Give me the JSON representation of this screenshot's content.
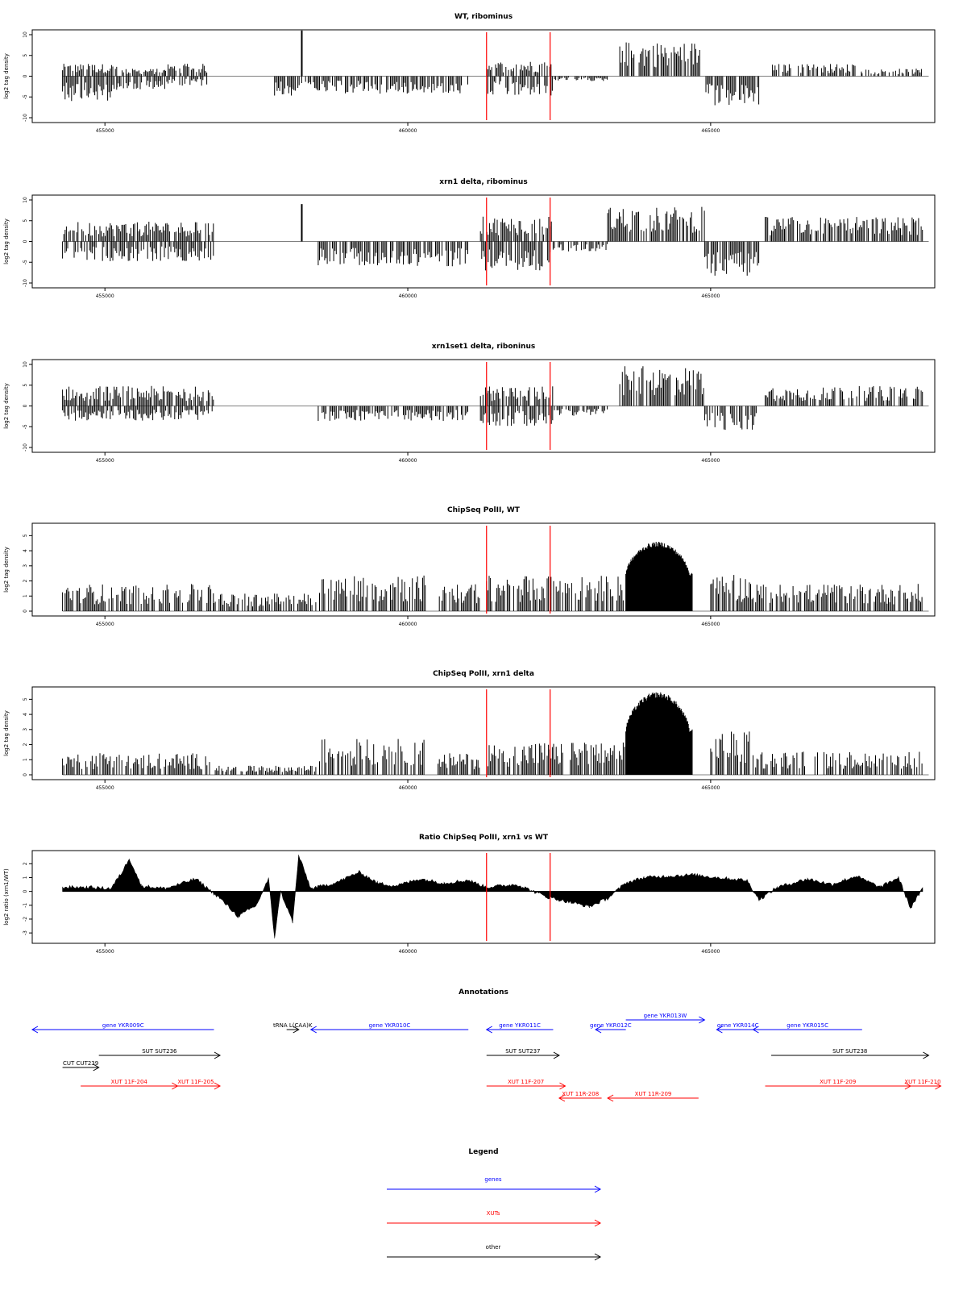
{
  "colors": {
    "gene": "#0000ff",
    "xut": "#ff0000",
    "other": "#000000",
    "marker": "#ff0000",
    "bars": "#000000",
    "baseline": "#808080"
  },
  "chart_data": [
    {
      "type": "bar",
      "title": "WT, ribominus",
      "ylabel": "log2 tag density",
      "xlim": [
        453800,
        468700
      ],
      "ylim": [
        -10,
        10
      ],
      "yticks": [
        10,
        5,
        0,
        -5,
        -10
      ],
      "xticks": [
        455000,
        460000,
        465000
      ],
      "xtick_labels": [
        "455000",
        "460000",
        "465000"
      ],
      "markers": [
        461300,
        462350
      ],
      "segments": [
        {
          "from": 454300,
          "to": 455200,
          "level": 2.5
        },
        {
          "from": 454300,
          "to": 455200,
          "level": -5
        },
        {
          "from": 455200,
          "to": 456000,
          "level": 1.5
        },
        {
          "from": 455200,
          "to": 456000,
          "level": -3
        },
        {
          "from": 456000,
          "to": 456700,
          "level": 2.5
        },
        {
          "from": 456000,
          "to": 456700,
          "level": -2
        },
        {
          "from": 457800,
          "to": 458100,
          "level": -4
        },
        {
          "from": 458100,
          "to": 458500,
          "level": -3
        },
        {
          "from": 458500,
          "to": 461000,
          "level": -3.5
        },
        {
          "from": 461300,
          "to": 462400,
          "level": 3
        },
        {
          "from": 461300,
          "to": 462400,
          "level": -4
        },
        {
          "from": 462400,
          "to": 463300,
          "level": -1
        },
        {
          "from": 463500,
          "to": 464900,
          "level": 7
        },
        {
          "from": 464900,
          "to": 465800,
          "level": -6
        },
        {
          "from": 466000,
          "to": 467500,
          "level": 2.5
        },
        {
          "from": 467500,
          "to": 468500,
          "level": 1.5
        }
      ],
      "spikes": [
        {
          "x": 458250,
          "value": 11
        }
      ]
    },
    {
      "type": "bar",
      "title": "xrn1 delta, ribominus",
      "ylabel": "log2 tag density",
      "xlim": [
        453800,
        468700
      ],
      "ylim": [
        -10,
        10
      ],
      "yticks": [
        10,
        5,
        0,
        -5,
        -10
      ],
      "xticks": [
        455000,
        460000,
        465000
      ],
      "xtick_labels": [
        "455000",
        "460000",
        "465000"
      ],
      "markers": [
        461300,
        462350
      ],
      "segments": [
        {
          "from": 454300,
          "to": 456800,
          "level": 4
        },
        {
          "from": 454300,
          "to": 456800,
          "level": -4
        },
        {
          "from": 458500,
          "to": 461000,
          "level": -5
        },
        {
          "from": 461200,
          "to": 462400,
          "level": 5
        },
        {
          "from": 461200,
          "to": 462400,
          "level": -6
        },
        {
          "from": 462400,
          "to": 463300,
          "level": -2
        },
        {
          "from": 463300,
          "to": 464900,
          "level": 7
        },
        {
          "from": 464900,
          "to": 465800,
          "level": -7
        },
        {
          "from": 465900,
          "to": 468500,
          "level": 5
        }
      ],
      "spikes": [
        {
          "x": 458250,
          "value": 9
        }
      ]
    },
    {
      "type": "bar",
      "title": "xrn1set1 delta, riboninus",
      "ylabel": "log2 tag density",
      "xlim": [
        453800,
        468700
      ],
      "ylim": [
        -10,
        10
      ],
      "yticks": [
        10,
        5,
        0,
        -5,
        -10
      ],
      "xticks": [
        455000,
        460000,
        465000
      ],
      "xtick_labels": [
        "455000",
        "460000",
        "465000"
      ],
      "markers": [
        461300,
        462350
      ],
      "segments": [
        {
          "from": 454300,
          "to": 456800,
          "level": 4
        },
        {
          "from": 454300,
          "to": 456800,
          "level": -3
        },
        {
          "from": 458500,
          "to": 461000,
          "level": -3
        },
        {
          "from": 461200,
          "to": 462400,
          "level": 4
        },
        {
          "from": 461200,
          "to": 462400,
          "level": -4
        },
        {
          "from": 462400,
          "to": 463300,
          "level": -2
        },
        {
          "from": 463500,
          "to": 464900,
          "level": 8
        },
        {
          "from": 464900,
          "to": 465800,
          "level": -5
        },
        {
          "from": 465900,
          "to": 468500,
          "level": 4
        }
      ],
      "spikes": []
    },
    {
      "type": "bar",
      "title": "ChipSeq PolII, WT",
      "ylabel": "log2 tag density",
      "xlim": [
        453800,
        468700
      ],
      "ylim": [
        0,
        5.5
      ],
      "yticks": [
        0,
        1,
        2,
        3,
        4,
        5
      ],
      "xticks": [
        455000,
        460000,
        465000
      ],
      "xtick_labels": [
        "455000",
        "460000",
        "465000"
      ],
      "markers": [
        461300,
        462350
      ],
      "segments": [
        {
          "from": 454300,
          "to": 456800,
          "level": 1.5
        },
        {
          "from": 456800,
          "to": 458500,
          "level": 1
        },
        {
          "from": 458500,
          "to": 460300,
          "level": 2
        },
        {
          "from": 460500,
          "to": 461200,
          "level": 1.5
        },
        {
          "from": 461300,
          "to": 463600,
          "level": 2
        },
        {
          "from": 465000,
          "to": 465700,
          "level": 2
        },
        {
          "from": 465700,
          "to": 468500,
          "level": 1.5
        }
      ],
      "plateau": {
        "from": 463600,
        "to": 464700,
        "max": 4.6
      },
      "spikes": []
    },
    {
      "type": "bar",
      "title": "ChipSeq PolII, xrn1 delta",
      "ylabel": "log2 tag density",
      "xlim": [
        453800,
        468700
      ],
      "ylim": [
        0,
        5.5
      ],
      "yticks": [
        0,
        1,
        2,
        3,
        4,
        5
      ],
      "xticks": [
        455000,
        460000,
        465000
      ],
      "xtick_labels": [
        "455000",
        "460000",
        "465000"
      ],
      "markers": [
        461300,
        462350
      ],
      "segments": [
        {
          "from": 454300,
          "to": 456800,
          "level": 1.2
        },
        {
          "from": 456800,
          "to": 458500,
          "level": 0.5
        },
        {
          "from": 458500,
          "to": 460300,
          "level": 2
        },
        {
          "from": 460500,
          "to": 461200,
          "level": 1.2
        },
        {
          "from": 461300,
          "to": 463600,
          "level": 1.8
        },
        {
          "from": 465000,
          "to": 465700,
          "level": 2.4
        },
        {
          "from": 465700,
          "to": 468500,
          "level": 1.3
        }
      ],
      "plateau": {
        "from": 463600,
        "to": 464700,
        "max": 5.5
      },
      "spikes": []
    },
    {
      "type": "area",
      "title": "Ratio ChipSeq PolII, xrn1 vs WT",
      "ylabel": "log2 ratio (xrn1/WT)",
      "xlim": [
        453800,
        468700
      ],
      "ylim": [
        -3.4,
        2.6
      ],
      "yticks": [
        2,
        1,
        0,
        -1,
        -2,
        -3
      ],
      "xticks": [
        455000,
        460000,
        465000
      ],
      "xtick_labels": [
        "455000",
        "460000",
        "465000"
      ],
      "markers": [
        461300,
        462350
      ],
      "x": [
        454300,
        454700,
        455100,
        455300,
        455400,
        455600,
        456000,
        456500,
        456900,
        457200,
        457500,
        457700,
        457800,
        457900,
        458100,
        458200,
        458400,
        458800,
        459200,
        459500,
        459800,
        460200,
        460600,
        461000,
        461300,
        461800,
        462300,
        462700,
        463000,
        463300,
        463600,
        463900,
        464300,
        464700,
        465100,
        465600,
        465800,
        466100,
        466600,
        467000,
        467400,
        467800,
        468100,
        468300,
        468500
      ],
      "values": [
        0.3,
        0.3,
        0.2,
        1.5,
        2.4,
        0.4,
        0.2,
        0.9,
        -0.5,
        -1.8,
        -1.0,
        0.9,
        -3.3,
        0.0,
        -2.2,
        2.6,
        0.2,
        0.6,
        1.4,
        0.6,
        0.4,
        0.9,
        0.6,
        0.8,
        0.3,
        0.5,
        -0.4,
        -0.8,
        -1.1,
        -0.5,
        0.6,
        1.0,
        1.1,
        1.2,
        1.0,
        0.8,
        -0.6,
        0.3,
        0.9,
        0.5,
        1.1,
        0.3,
        1.0,
        -1.2,
        0.2
      ]
    }
  ],
  "annotations": {
    "title": "Annotations",
    "genomic_range": [
      453800,
      468700
    ],
    "items": [
      {
        "label": "gene YKR009C",
        "start": 456800,
        "end": 453800,
        "track": 1,
        "kind": "gene"
      },
      {
        "label": "gene YKR010C",
        "start": 461000,
        "end": 458400,
        "track": 1,
        "kind": "gene"
      },
      {
        "label": "gene YKR011C",
        "start": 462400,
        "end": 461300,
        "track": 1,
        "kind": "gene"
      },
      {
        "label": "gene YKR013W",
        "start": 463600,
        "end": 464900,
        "track": 0,
        "kind": "gene"
      },
      {
        "label": "gene YKR012C",
        "start": 463600,
        "end": 463100,
        "track": 1,
        "kind": "gene"
      },
      {
        "label": "gene YKR014C",
        "start": 465800,
        "end": 465100,
        "track": 1,
        "kind": "gene"
      },
      {
        "label": "gene YKR015C",
        "start": 467500,
        "end": 465700,
        "track": 1,
        "kind": "gene"
      },
      {
        "label": "tRNA L(CAA)K",
        "start": 458000,
        "end": 458200,
        "track": 1,
        "kind": "other"
      },
      {
        "label": "SUT SUT236",
        "start": 454900,
        "end": 456900,
        "track": 2,
        "kind": "other"
      },
      {
        "label": "SUT SUT237",
        "start": 461300,
        "end": 462500,
        "track": 2,
        "kind": "other"
      },
      {
        "label": "SUT SUT238",
        "start": 466000,
        "end": 468600,
        "track": 2,
        "kind": "other"
      },
      {
        "label": "CUT CUT239",
        "start": 454300,
        "end": 454900,
        "track": 3,
        "kind": "other"
      },
      {
        "label": "XUT 11F-204",
        "start": 454600,
        "end": 456200,
        "track": 4,
        "kind": "xut"
      },
      {
        "label": "XUT 11F-205",
        "start": 456100,
        "end": 456900,
        "track": 4,
        "kind": "xut"
      },
      {
        "label": "XUT 11F-207",
        "start": 461300,
        "end": 462600,
        "track": 4,
        "kind": "xut"
      },
      {
        "label": "XUT 11R-208",
        "start": 463200,
        "end": 462500,
        "track": 5,
        "kind": "xut"
      },
      {
        "label": "XUT 11R-209",
        "start": 464800,
        "end": 463300,
        "track": 5,
        "kind": "xut"
      },
      {
        "label": "XUT 11F-209",
        "start": 465900,
        "end": 468300,
        "track": 4,
        "kind": "xut"
      },
      {
        "label": "XUT 11F-210",
        "start": 468200,
        "end": 468800,
        "track": 4,
        "kind": "xut"
      }
    ]
  },
  "legend": {
    "title": "Legend",
    "entries": [
      {
        "label": "genes",
        "kind": "gene"
      },
      {
        "label": "XUTs",
        "kind": "xut"
      },
      {
        "label": "other",
        "kind": "other"
      }
    ]
  }
}
